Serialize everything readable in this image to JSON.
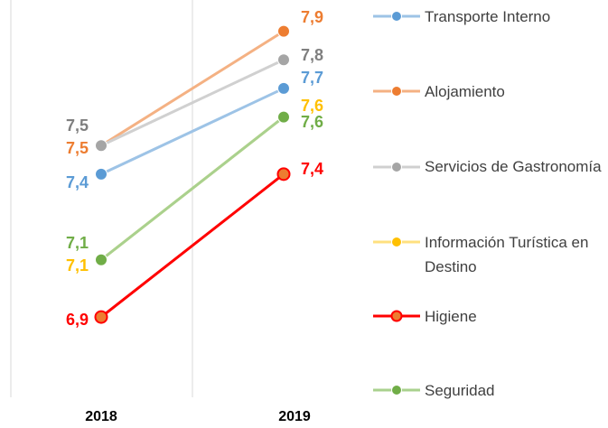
{
  "chart_data": {
    "type": "line",
    "categories": [
      "2018",
      "2019"
    ],
    "ylim": [
      6.6,
      8.0
    ],
    "series": [
      {
        "name": "Transporte Interno",
        "color": "#5b9bd5",
        "line_color": "#9dc3e6",
        "values": [
          7.4,
          7.7
        ],
        "value_labels": [
          "7,4",
          "7,7"
        ]
      },
      {
        "name": "Alojamiento",
        "color": "#ed7d31",
        "line_color": "#f4b183",
        "values": [
          7.5,
          7.9
        ],
        "value_labels": [
          "7,5",
          "7,9"
        ]
      },
      {
        "name": "Servicios de Gastronomía",
        "color": "#a5a5a5",
        "line_color": "#d0d0d0",
        "values": [
          7.5,
          7.8
        ],
        "value_labels": [
          "7,5",
          "7,8"
        ]
      },
      {
        "name": "Información Turística en Destino",
        "color": "#ffc000",
        "line_color": "#ffe07f",
        "values": [
          7.1,
          7.6
        ],
        "value_labels": [
          "7,1",
          "7,6"
        ]
      },
      {
        "name": "Higiene",
        "color": "#ff0000",
        "line_color": "#ff0000",
        "values": [
          6.9,
          7.4
        ],
        "value_labels": [
          "6,9",
          "7,4"
        ]
      },
      {
        "name": "Seguridad",
        "color": "#70ad47",
        "line_color": "#a9d18e",
        "values": [
          7.1,
          7.6
        ],
        "value_labels": [
          "7,1",
          "7,6"
        ]
      }
    ]
  }
}
